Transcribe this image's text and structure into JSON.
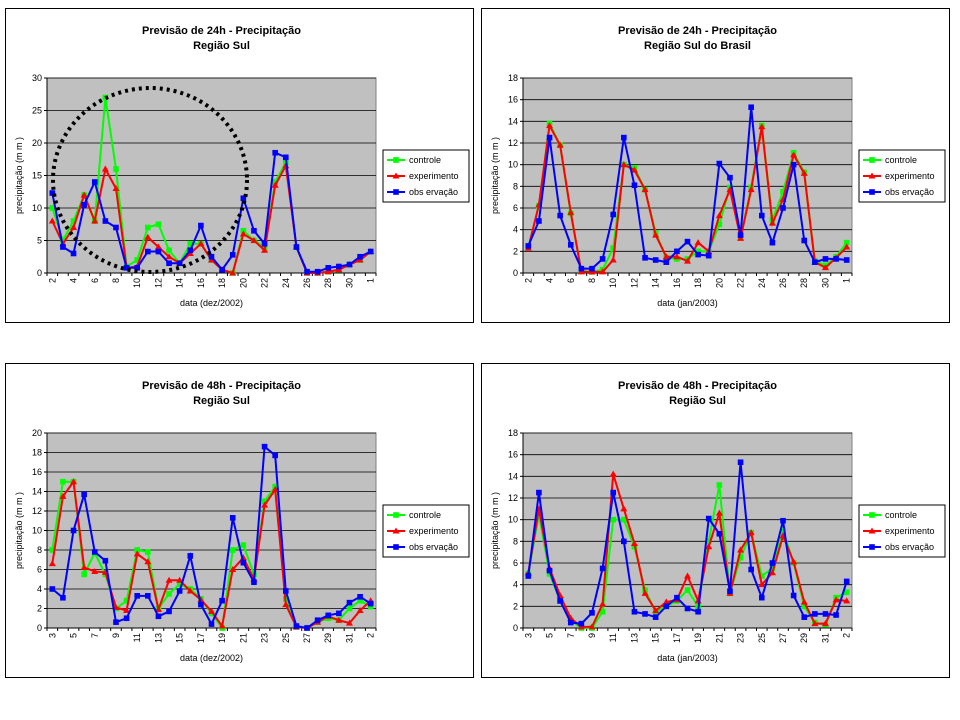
{
  "chart_data": [
    {
      "type": "line",
      "title": "Previsão de 24h - Precipitação",
      "subtitle": "Região Sul",
      "x_label": "data (dez/2002)",
      "y_label": "precipitação (m m )",
      "categories": [
        "2",
        null,
        "4",
        null,
        "6",
        null,
        "8",
        null,
        "10",
        null,
        "12",
        null,
        "14",
        null,
        "16",
        null,
        "18",
        null,
        "20",
        null,
        "22",
        null,
        "24",
        null,
        "26",
        null,
        "28",
        null,
        "30",
        null,
        "1"
      ],
      "ylim": [
        0,
        30
      ],
      "yticks": [
        0,
        5,
        10,
        15,
        20,
        25,
        30
      ],
      "grid": true,
      "legend": "right",
      "series": [
        {
          "name": "controle",
          "color": "#00ff00",
          "marker": "square",
          "values": [
            10,
            5,
            8,
            12,
            8,
            27,
            16,
            1,
            2,
            7,
            7.5,
            3.5,
            1.5,
            4.5,
            4.5,
            2,
            0.5,
            0,
            6.5,
            5,
            4,
            14,
            17,
            4,
            0,
            0,
            0.2,
            0.5,
            1.3,
            2,
            3.3
          ]
        },
        {
          "name": "experimento",
          "color": "#ff0000",
          "marker": "triangle",
          "values": [
            8,
            4.5,
            7,
            12,
            8,
            16,
            13,
            0.8,
            1,
            5.5,
            4,
            2.5,
            1.5,
            3,
            4.5,
            2,
            0.5,
            0,
            6,
            5,
            3.5,
            13.5,
            16.5,
            4,
            0,
            0,
            0.2,
            0.5,
            1.3,
            2,
            3.3
          ]
        },
        {
          "name": "obs ervação",
          "color": "#0000ff",
          "marker": "square",
          "values": [
            12.3,
            4,
            3,
            10.5,
            14,
            8,
            7,
            0.8,
            0.8,
            3.3,
            3.3,
            1.5,
            1.5,
            3.5,
            7.3,
            2.5,
            0.5,
            2.8,
            11.5,
            6.5,
            4.5,
            18.5,
            17.8,
            4,
            0.2,
            0.2,
            0.8,
            1,
            1.3,
            2.5,
            3.3
          ]
        }
      ]
    },
    {
      "type": "line",
      "title": "Previsão de 24h - Precipitação",
      "subtitle": "Região Sul do Brasil",
      "x_label": "data (jan/2003)",
      "y_label": "precipitação (m m )",
      "categories": [
        "2",
        null,
        "4",
        null,
        "6",
        null,
        "8",
        null,
        "10",
        null,
        "12",
        null,
        "14",
        null,
        "16",
        null,
        "18",
        null,
        "20",
        null,
        "22",
        null,
        "24",
        null,
        "26",
        null,
        "28",
        null,
        "30",
        null,
        "1"
      ],
      "ylim": [
        0,
        18
      ],
      "yticks": [
        0,
        2,
        4,
        6,
        8,
        10,
        12,
        14,
        16,
        18
      ],
      "grid": true,
      "legend": "right",
      "series": [
        {
          "name": "controle",
          "color": "#00ff00",
          "marker": "square",
          "values": [
            2.4,
            6.2,
            13.8,
            11.8,
            5.5,
            0.2,
            0.1,
            0.3,
            2.3,
            10,
            9.7,
            7.7,
            3.7,
            1.4,
            1.3,
            1.3,
            2,
            2,
            4.5,
            7.9,
            3.3,
            7.9,
            13.6,
            4.9,
            7.5,
            11.1,
            9.3,
            1.1,
            0.7,
            1.5,
            2.8
          ]
        },
        {
          "name": "experimento",
          "color": "#ff0000",
          "marker": "triangle",
          "values": [
            2.3,
            6.3,
            13.6,
            11.8,
            5.6,
            0.1,
            0.1,
            0.1,
            1.2,
            10,
            9.5,
            7.7,
            3.5,
            1.5,
            1.5,
            1.1,
            2.8,
            2,
            5.3,
            7.7,
            3.2,
            7.7,
            13.5,
            4.6,
            6.8,
            10.9,
            9.2,
            1,
            0.5,
            1.4,
            2.4
          ]
        },
        {
          "name": "obs ervação",
          "color": "#0000ff",
          "marker": "square",
          "values": [
            2.5,
            4.8,
            12.5,
            5.3,
            2.6,
            0.4,
            0.4,
            1.3,
            5.4,
            12.5,
            8.1,
            1.4,
            1.2,
            1,
            2,
            2.9,
            1.7,
            1.6,
            10.1,
            8.8,
            3.5,
            15.3,
            5.3,
            2.8,
            6,
            10,
            3,
            1,
            1.3,
            1.3,
            1.2
          ]
        }
      ]
    },
    {
      "type": "line",
      "title": "Previsão de 48h - Precipitação",
      "subtitle": "Região Sul",
      "x_label": "data (dez/2002)",
      "y_label": "precipitação (m m )",
      "categories": [
        "3",
        null,
        "5",
        null,
        "7",
        null,
        "9",
        null,
        "11",
        null,
        "13",
        null,
        "15",
        null,
        "17",
        null,
        "19",
        null,
        "21",
        null,
        "23",
        null,
        "25",
        null,
        "27",
        null,
        "29",
        null,
        "31",
        null,
        "2"
      ],
      "ylim": [
        0,
        20
      ],
      "yticks": [
        0,
        2,
        4,
        6,
        8,
        10,
        12,
        14,
        16,
        18,
        20
      ],
      "grid": true,
      "legend": "right",
      "series": [
        {
          "name": "controle",
          "color": "#00ff00",
          "marker": "square",
          "values": [
            8,
            15,
            15,
            5.5,
            7.7,
            5.5,
            2,
            2.8,
            8,
            7.8,
            2,
            3.5,
            4.5,
            4,
            3,
            1.5,
            0,
            8,
            8.5,
            5.5,
            13,
            14.5,
            3,
            0.1,
            0,
            0.6,
            1,
            0.8,
            2,
            2.8,
            2.2
          ]
        },
        {
          "name": "experimento",
          "color": "#ff0000",
          "marker": "triangle",
          "values": [
            6.6,
            13.5,
            15,
            6.2,
            5.8,
            5.7,
            2.1,
            1.8,
            7.6,
            6.8,
            1.9,
            4.9,
            4.9,
            3.8,
            2.9,
            1.7,
            0.2,
            6,
            7.2,
            5,
            12.6,
            14.2,
            2.4,
            0.1,
            0,
            0.6,
            1.2,
            0.8,
            0.5,
            1.8,
            2.8
          ]
        },
        {
          "name": "obs ervação",
          "color": "#0000ff",
          "marker": "square",
          "values": [
            4,
            3.1,
            10,
            13.7,
            7.8,
            6.9,
            0.6,
            1,
            3.3,
            3.3,
            1.2,
            1.7,
            3.8,
            7.4,
            2.4,
            0.4,
            2.8,
            11.3,
            6.7,
            4.7,
            18.6,
            17.7,
            3.8,
            0.2,
            0,
            0.8,
            1.3,
            1.5,
            2.6,
            3.2,
            2.5
          ]
        }
      ]
    },
    {
      "type": "line",
      "title": "Previsão de 48h - Precipitação",
      "subtitle": "Região Sul",
      "x_label": "data (jan/2003)",
      "y_label": "precipitação (m m )",
      "categories": [
        "3",
        null,
        "5",
        null,
        "7",
        null,
        "9",
        null,
        "11",
        null,
        "13",
        null,
        "15",
        null,
        "17",
        null,
        "19",
        null,
        "21",
        null,
        "23",
        null,
        "25",
        null,
        "27",
        null,
        "29",
        null,
        "31",
        null,
        "2"
      ],
      "ylim": [
        0,
        18
      ],
      "yticks": [
        0,
        2,
        4,
        6,
        8,
        10,
        12,
        14,
        16,
        18
      ],
      "grid": true,
      "legend": "right",
      "series": [
        {
          "name": "controle",
          "color": "#00ff00",
          "marker": "square",
          "values": [
            5,
            10.5,
            5,
            2.5,
            0.7,
            0,
            0,
            1.5,
            10,
            10,
            7.5,
            3.5,
            1.5,
            2,
            2.5,
            3.5,
            2,
            8,
            13.2,
            3.2,
            6.5,
            8.8,
            4.8,
            5.5,
            9,
            6,
            2,
            0.5,
            0.3,
            2.8,
            3.3
          ]
        },
        {
          "name": "experimento",
          "color": "#ff0000",
          "marker": "triangle",
          "values": [
            5.1,
            11,
            5.5,
            3,
            0.9,
            0.1,
            0.1,
            2.2,
            14.2,
            11,
            7.8,
            3.2,
            1.6,
            2.4,
            2.6,
            4.8,
            2.5,
            7.5,
            10.6,
            3.2,
            7.2,
            8.8,
            4,
            5.1,
            8.5,
            6.1,
            2.4,
            0.4,
            0.4,
            2.6,
            2.5
          ]
        },
        {
          "name": "obs ervação",
          "color": "#0000ff",
          "marker": "square",
          "values": [
            4.8,
            12.5,
            5.3,
            2.5,
            0.5,
            0.4,
            1.4,
            5.5,
            12.5,
            8,
            1.5,
            1.3,
            1,
            2,
            2.8,
            1.8,
            1.5,
            10.1,
            8.7,
            3.4,
            15.3,
            5.4,
            2.8,
            6,
            9.9,
            3,
            1,
            1.3,
            1.3,
            1.2,
            4.3
          ]
        }
      ]
    }
  ]
}
